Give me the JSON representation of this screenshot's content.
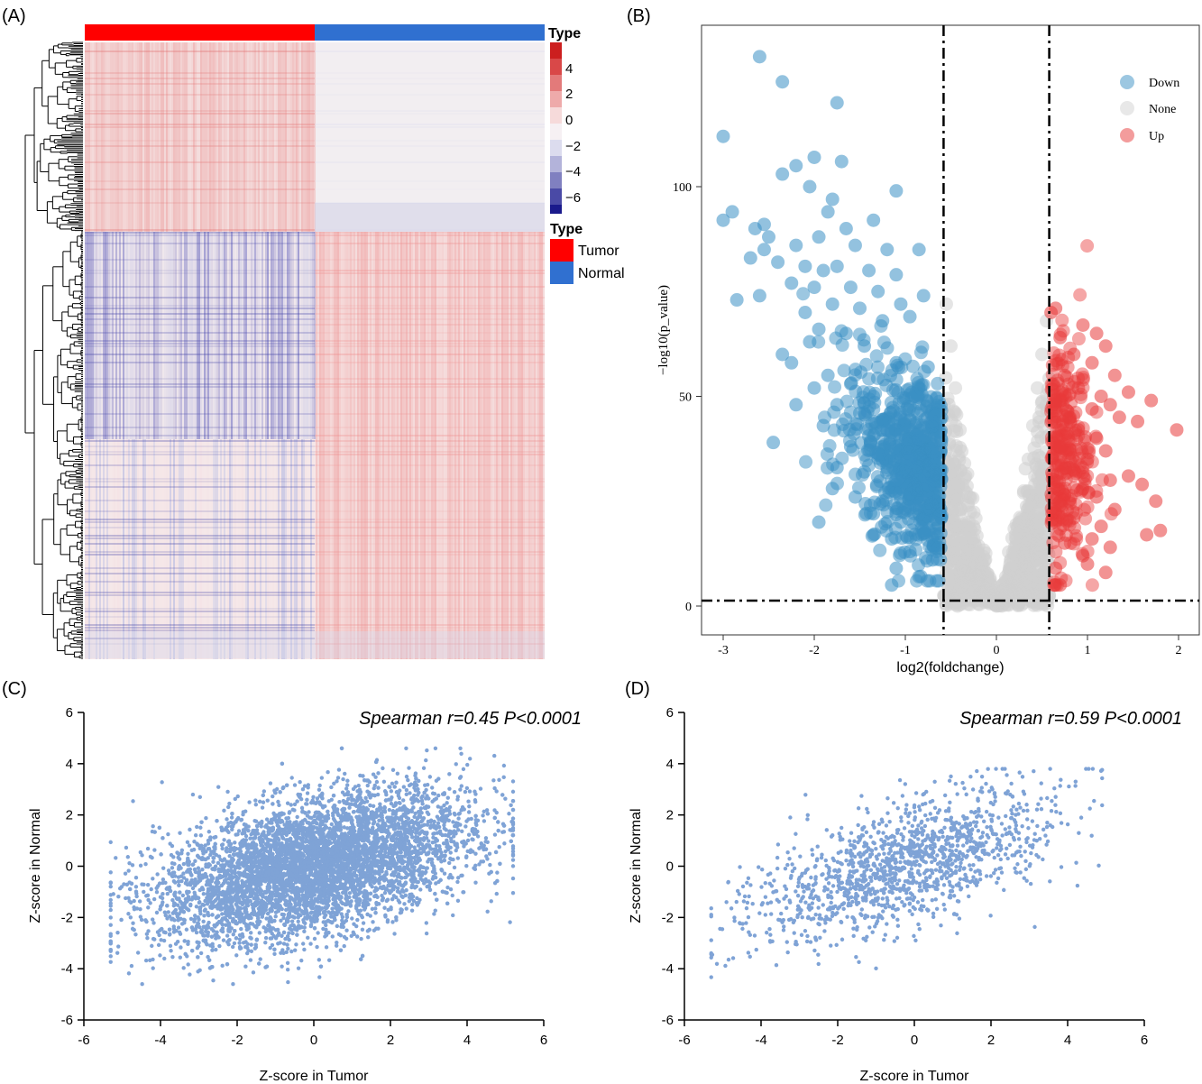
{
  "panels": {
    "a": "(A)",
    "b": "(B)",
    "c": "(C)",
    "d": "(D)"
  },
  "colors": {
    "tumor": "#ff0000",
    "normal": "#3070d0",
    "down": "#3a8fc4",
    "none": "#cfcfcf",
    "up": "#e83a3a",
    "scatter": "#7fa3d6",
    "heat_high": "#d73027",
    "heat_mid": "#f7ecec",
    "heat_low": "#1a1a8c"
  },
  "chart_data": [
    {
      "id": "A",
      "type": "heatmap",
      "title": "",
      "columns": [
        "Tumor",
        "Normal"
      ],
      "row_blocks": [
        {
          "rows": "top",
          "tumor": "up (red)",
          "normal": "neutral"
        },
        {
          "rows": "bottom",
          "tumor": "down (blue)",
          "normal": "up (red)"
        }
      ],
      "scale_title": "Type",
      "scale_ticks": [
        "4",
        "2",
        "0",
        "−2",
        "−4",
        "−6"
      ],
      "scale_values": [
        4,
        2,
        0,
        -2,
        -4,
        -6
      ],
      "legend_title": "Type",
      "legend": [
        {
          "label": "Tumor",
          "color": "#ff0000"
        },
        {
          "label": "Normal",
          "color": "#3070d0"
        }
      ]
    },
    {
      "id": "B",
      "type": "scatter",
      "subtype": "volcano",
      "xlabel": "log2(foldchange)",
      "ylabel": "−log10(p_value)",
      "xlim": [
        -3.3,
        2.2
      ],
      "ylim": [
        -5,
        140
      ],
      "xticks": [
        -3,
        -2,
        -1,
        0,
        1,
        2
      ],
      "yticks": [
        0,
        50,
        100
      ],
      "thresholds": {
        "x": [
          -0.58,
          0.58
        ],
        "y": 1.3
      },
      "legend_position": "top-right",
      "legend": [
        {
          "label": "Down",
          "color": "#3a8fc4"
        },
        {
          "label": "None",
          "color": "#cfcfcf"
        },
        {
          "label": "Up",
          "color": "#e83a3a"
        }
      ],
      "series": [
        {
          "name": "Down",
          "points": [
            [
              -2.6,
              131
            ],
            [
              -2.35,
              125
            ],
            [
              -1.75,
              120
            ],
            [
              -3.0,
              112
            ],
            [
              -2.0,
              107
            ],
            [
              -1.7,
              106
            ],
            [
              -2.2,
              105
            ],
            [
              -2.35,
              103
            ],
            [
              -2.05,
              100
            ],
            [
              -1.1,
              99
            ],
            [
              -1.8,
              97
            ],
            [
              -1.85,
              94
            ],
            [
              -2.9,
              94
            ],
            [
              -3.0,
              92
            ],
            [
              -2.55,
              91
            ],
            [
              -2.65,
              90
            ],
            [
              -1.65,
              90
            ],
            [
              -1.35,
              92
            ],
            [
              -2.5,
              88
            ],
            [
              -1.95,
              88
            ],
            [
              -2.2,
              86
            ],
            [
              -2.55,
              85
            ],
            [
              -1.55,
              86
            ],
            [
              -1.2,
              85
            ],
            [
              -0.85,
              85
            ],
            [
              -2.7,
              83
            ],
            [
              -2.4,
              82
            ],
            [
              -2.1,
              81
            ],
            [
              -1.9,
              80
            ],
            [
              -1.75,
              81
            ],
            [
              -1.4,
              80
            ],
            [
              -1.1,
              79
            ],
            [
              -2.25,
              77
            ],
            [
              -2.0,
              76
            ],
            [
              -1.6,
              76
            ],
            [
              -1.3,
              75
            ],
            [
              -2.85,
              73
            ],
            [
              -2.6,
              74
            ],
            [
              -0.8,
              74
            ],
            [
              -1.05,
              72
            ],
            [
              -1.8,
              72
            ],
            [
              -1.5,
              71
            ],
            [
              -2.1,
              70
            ],
            [
              -1.25,
              68
            ],
            [
              -0.95,
              69
            ],
            [
              -1.95,
              66
            ],
            [
              -1.65,
              65
            ],
            [
              -2.05,
              63
            ],
            [
              -1.45,
              62
            ],
            [
              -2.35,
              60
            ],
            [
              -1.1,
              58
            ],
            [
              -0.75,
              57
            ],
            [
              -2.25,
              58
            ],
            [
              -1.85,
              55
            ],
            [
              -1.6,
              53
            ],
            [
              -2.0,
              52
            ],
            [
              -1.35,
              50
            ],
            [
              -0.9,
              50
            ],
            [
              -1.75,
              48
            ],
            [
              -2.2,
              48
            ],
            [
              -1.5,
              46
            ],
            [
              -1.05,
              45
            ],
            [
              -0.7,
              44
            ],
            [
              -1.9,
              43
            ],
            [
              -1.2,
              42
            ],
            [
              -0.85,
              40
            ],
            [
              -2.45,
              39
            ],
            [
              -1.6,
              38
            ],
            [
              -1.3,
              36
            ],
            [
              -0.95,
              35
            ],
            [
              -1.75,
              33
            ],
            [
              -1.45,
              32
            ],
            [
              -1.1,
              30
            ],
            [
              -0.75,
              29
            ],
            [
              -1.8,
              28
            ],
            [
              -1.55,
              26
            ],
            [
              -1.25,
              25
            ],
            [
              -0.9,
              24
            ],
            [
              -1.35,
              22
            ],
            [
              -1.05,
              20
            ],
            [
              -1.95,
              20
            ],
            [
              -0.8,
              18
            ],
            [
              -1.15,
              16
            ],
            [
              -0.95,
              13
            ],
            [
              -0.7,
              11
            ],
            [
              -1.1,
              9
            ],
            [
              -0.85,
              7
            ],
            [
              -1.15,
              5
            ]
          ]
        },
        {
          "name": "None",
          "points": [
            [
              -0.55,
              72
            ],
            [
              -0.5,
              62
            ],
            [
              -0.45,
              52
            ],
            [
              -0.4,
              42
            ],
            [
              -0.35,
              34
            ],
            [
              -0.3,
              26
            ],
            [
              -0.25,
              19
            ],
            [
              -0.2,
              13
            ],
            [
              -0.15,
              8
            ],
            [
              -0.1,
              4
            ],
            [
              -0.05,
              1
            ],
            [
              0.0,
              0
            ],
            [
              0.05,
              1
            ],
            [
              0.1,
              4
            ],
            [
              0.15,
              9
            ],
            [
              0.2,
              14
            ],
            [
              0.25,
              20
            ],
            [
              0.3,
              27
            ],
            [
              0.35,
              35
            ],
            [
              0.4,
              43
            ],
            [
              0.45,
              52
            ],
            [
              0.5,
              60
            ],
            [
              0.55,
              68
            ]
          ]
        },
        {
          "name": "Up",
          "points": [
            [
              0.6,
              70
            ],
            [
              0.65,
              71
            ],
            [
              0.95,
              67
            ],
            [
              1.1,
              65
            ],
            [
              0.7,
              64
            ],
            [
              1.2,
              62
            ],
            [
              0.85,
              60
            ],
            [
              1.05,
              58
            ],
            [
              1.3,
              55
            ],
            [
              0.75,
              55
            ],
            [
              0.9,
              52
            ],
            [
              1.15,
              50
            ],
            [
              1.45,
              51
            ],
            [
              0.65,
              49
            ],
            [
              1.05,
              47
            ],
            [
              1.25,
              48
            ],
            [
              1.7,
              49
            ],
            [
              0.8,
              45
            ],
            [
              1.35,
              45
            ],
            [
              1.55,
              44
            ],
            [
              1.98,
              42
            ],
            [
              0.9,
              42
            ],
            [
              1.1,
              40
            ],
            [
              0.7,
              38
            ],
            [
              1.2,
              37
            ],
            [
              1.0,
              35
            ],
            [
              0.8,
              33
            ],
            [
              1.45,
              31
            ],
            [
              1.25,
              30
            ],
            [
              1.6,
              29
            ],
            [
              0.95,
              28
            ],
            [
              1.1,
              26
            ],
            [
              1.75,
              25
            ],
            [
              0.7,
              24
            ],
            [
              1.3,
              23
            ],
            [
              0.85,
              21
            ],
            [
              1.15,
              19
            ],
            [
              1.65,
              17
            ],
            [
              1.05,
              16
            ],
            [
              1.8,
              18
            ],
            [
              0.75,
              15
            ],
            [
              1.25,
              14
            ],
            [
              0.95,
              12
            ],
            [
              1.0,
              10
            ],
            [
              0.65,
              9
            ],
            [
              1.2,
              8
            ],
            [
              0.7,
              5
            ]
          ]
        }
      ]
    },
    {
      "id": "C",
      "type": "scatter",
      "annotation": "Spearman r=0.45 P<0.0001",
      "spearman_r": 0.45,
      "p_value": "<0.0001",
      "n_points_approx": 6000,
      "xlabel": "Z-score in Tumor",
      "ylabel": "Z-score in Normal",
      "xlim": [
        -6,
        6
      ],
      "ylim": [
        -6,
        6
      ],
      "xticks": [
        -6,
        -4,
        -2,
        0,
        2,
        4,
        6
      ],
      "yticks": [
        -6,
        -4,
        -2,
        0,
        2,
        4,
        6
      ],
      "x_range_observed": [
        -5.3,
        5.2
      ],
      "y_range_observed": [
        -4.6,
        4.6
      ],
      "color": "#7fa3d6"
    },
    {
      "id": "D",
      "type": "scatter",
      "annotation": "Spearman r=0.59 P<0.0001",
      "spearman_r": 0.59,
      "p_value": "<0.0001",
      "n_points_approx": 1400,
      "xlabel": "Z-score in Tumor",
      "ylabel": "Z-score in Normal",
      "xlim": [
        -6,
        6
      ],
      "ylim": [
        -6,
        6
      ],
      "xticks": [
        -6,
        -4,
        -2,
        0,
        2,
        4,
        6
      ],
      "yticks": [
        -6,
        -4,
        -2,
        0,
        2,
        4,
        6
      ],
      "x_range_observed": [
        -5.3,
        4.9
      ],
      "y_range_observed": [
        -4.5,
        3.8
      ],
      "color": "#7fa3d6"
    }
  ]
}
